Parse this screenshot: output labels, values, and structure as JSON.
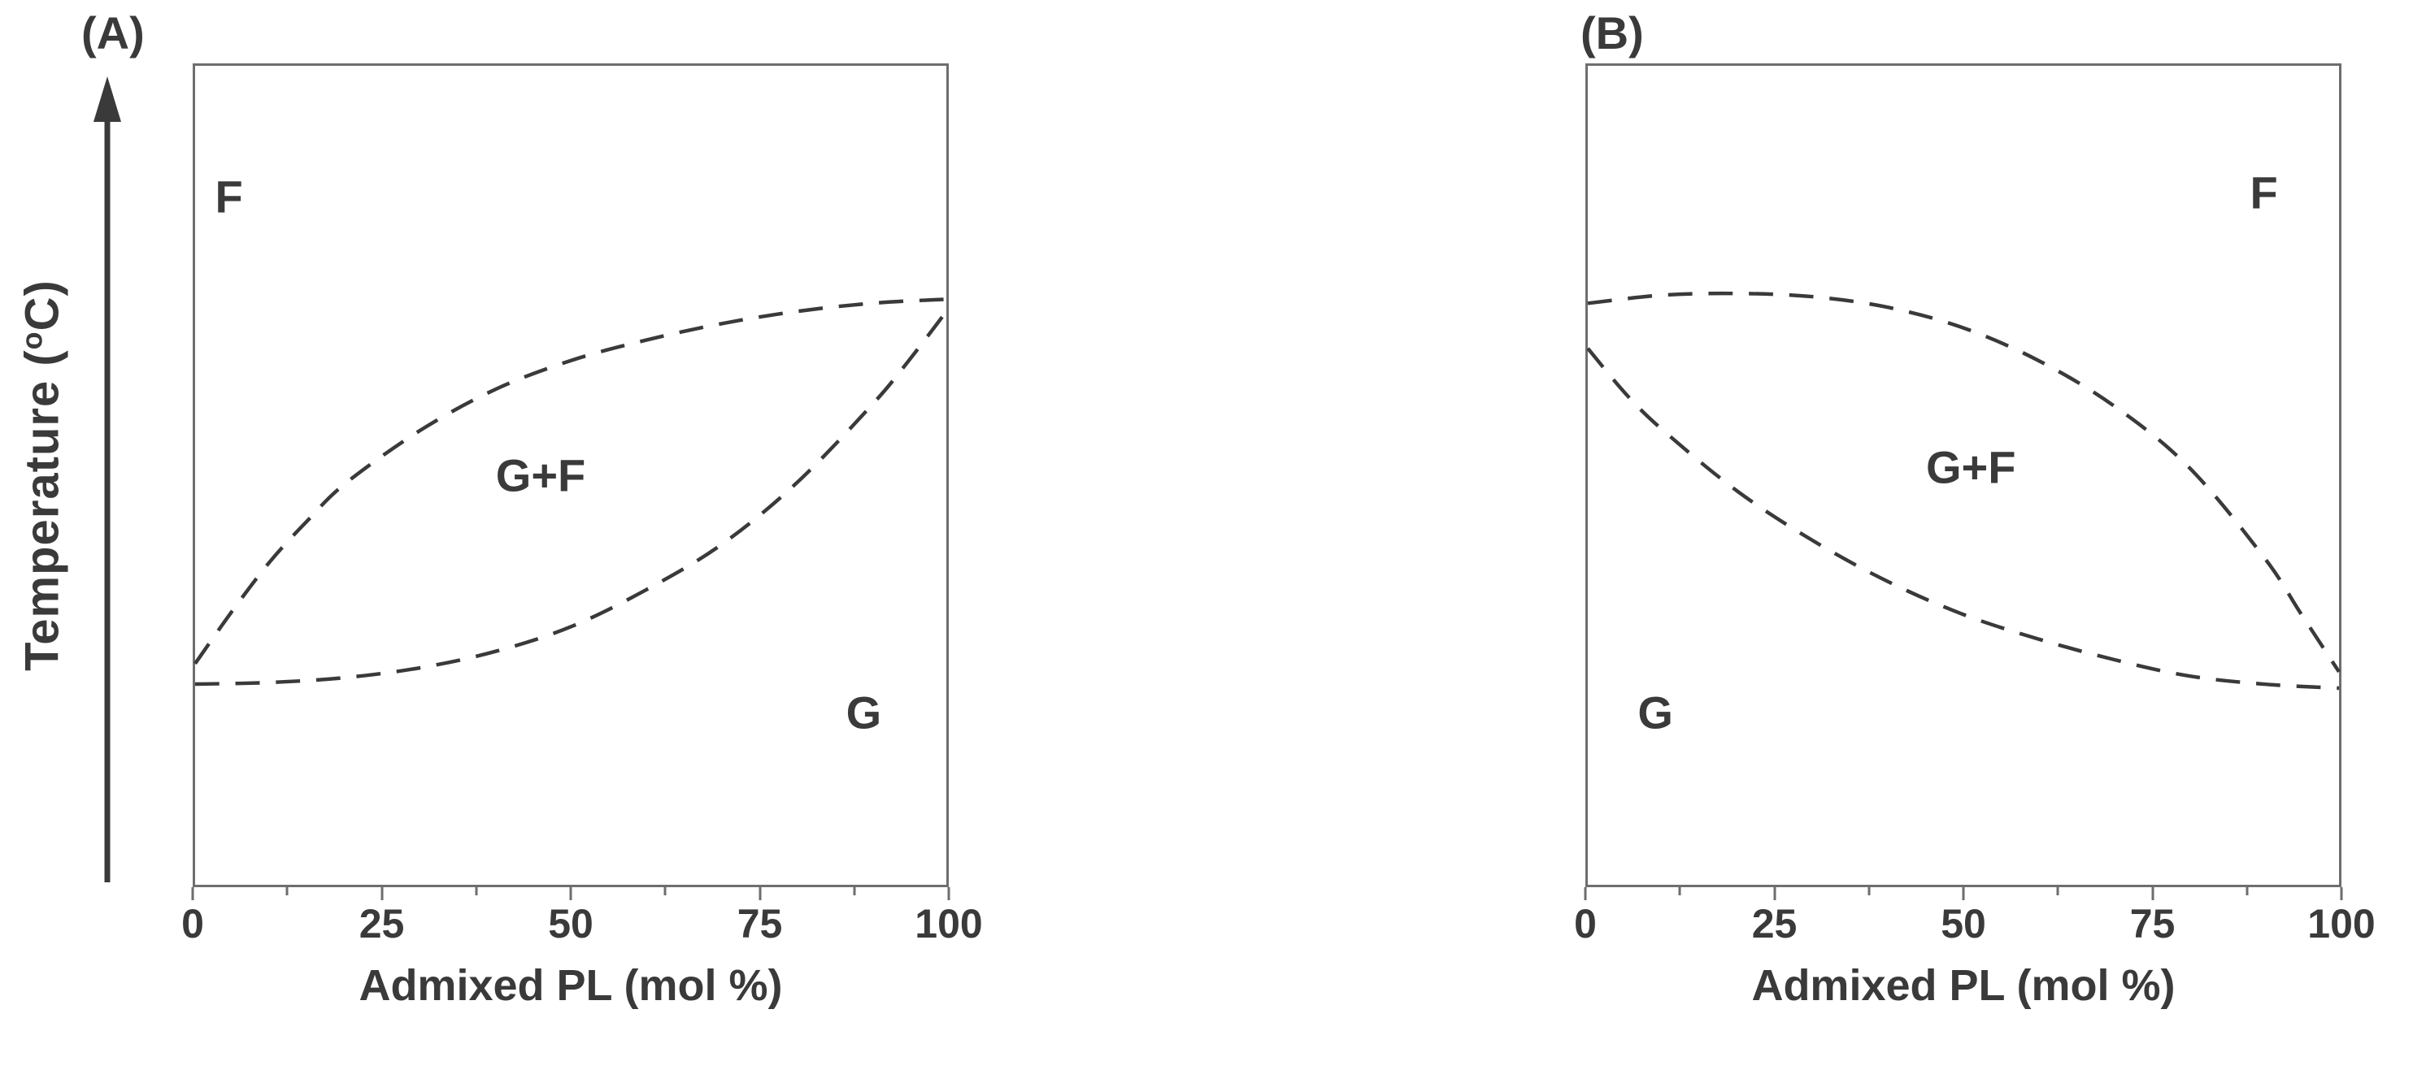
{
  "figure": {
    "background": "#ffffff",
    "ink_color": "#3a3a3a",
    "box_color": "#6e6e6e",
    "description": "Two schematic temperature-composition lipid phase diagrams, panels (A) and (B)"
  },
  "y_axis": {
    "label_prefix": "Temperature (",
    "label_sup": "o",
    "label_suffix": "C)",
    "arrow": "upward, no numeric scale"
  },
  "chart_data": [
    {
      "type": "line",
      "panel_label": "(A)",
      "title": "",
      "xlabel": "Admixed PL (mol %)",
      "ylabel": "Temperature (°C)",
      "xlim": [
        0,
        100
      ],
      "x_ticks": [
        0,
        25,
        50,
        75,
        100
      ],
      "x_minor_ticks": [
        12.5,
        37.5,
        62.5,
        87.5
      ],
      "y_ticks": [],
      "y_note": "arbitrary temperature scale (unlabeled y-axis with upward arrow); curve y values given as fraction of axis height from bottom",
      "grid": "off",
      "legend": "none",
      "regions": {
        "fluid": "F",
        "coexistence": "G+F",
        "gel": "G"
      },
      "series": [
        {
          "name": "upper phase boundary (fluidus, dashed)",
          "style": "dashed",
          "x": [
            0,
            5,
            10,
            15,
            20,
            30,
            40,
            50,
            60,
            70,
            80,
            90,
            100
          ],
          "y_rel": [
            0.27,
            0.335,
            0.395,
            0.445,
            0.49,
            0.555,
            0.605,
            0.64,
            0.665,
            0.685,
            0.7,
            0.71,
            0.715
          ]
        },
        {
          "name": "lower phase boundary (solidus, dashed)",
          "style": "dashed",
          "x": [
            0,
            10,
            20,
            30,
            40,
            50,
            60,
            70,
            80,
            90,
            95,
            100
          ],
          "y_rel": [
            0.245,
            0.247,
            0.253,
            0.265,
            0.285,
            0.315,
            0.36,
            0.415,
            0.49,
            0.585,
            0.64,
            0.7
          ]
        }
      ]
    },
    {
      "type": "line",
      "panel_label": "(B)",
      "title": "",
      "xlabel": "Admixed PL (mol %)",
      "ylabel": "Temperature (°C)",
      "xlim": [
        0,
        100
      ],
      "x_ticks": [
        0,
        25,
        50,
        75,
        100
      ],
      "x_minor_ticks": [
        12.5,
        37.5,
        62.5,
        87.5
      ],
      "y_ticks": [],
      "y_note": "arbitrary temperature scale shared with panel A; curve y values given as fraction of axis height from bottom",
      "grid": "off",
      "legend": "none",
      "regions": {
        "fluid": "F",
        "coexistence": "G+F",
        "gel": "G"
      },
      "series": [
        {
          "name": "upper phase boundary (fluidus, dashed)",
          "style": "dashed",
          "x": [
            0,
            10,
            20,
            30,
            40,
            50,
            60,
            70,
            80,
            90,
            95,
            100
          ],
          "y_rel": [
            0.71,
            0.72,
            0.722,
            0.718,
            0.705,
            0.68,
            0.64,
            0.585,
            0.51,
            0.4,
            0.33,
            0.26
          ]
        },
        {
          "name": "lower phase boundary (solidus, dashed)",
          "style": "dashed",
          "x": [
            0,
            5,
            10,
            20,
            30,
            40,
            50,
            60,
            70,
            80,
            90,
            100
          ],
          "y_rel": [
            0.655,
            0.6,
            0.555,
            0.48,
            0.42,
            0.37,
            0.33,
            0.3,
            0.275,
            0.255,
            0.245,
            0.24
          ]
        }
      ]
    }
  ]
}
